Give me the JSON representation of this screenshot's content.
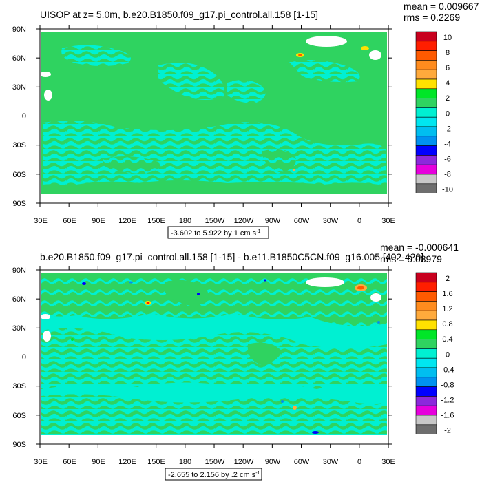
{
  "colors": {
    "background": "#ffffff",
    "ocean_main": "#2fd360",
    "ocean_alt": "#00f0d2",
    "land": "#ffffff"
  },
  "panels": [
    {
      "title": "UISOP at z=   5.0m, b.e20.B1850.f09_g17.pi_control.all.158 [1-15]",
      "stats": {
        "mean": "mean = 0.009667",
        "rms": "rms = 0.2269"
      },
      "range_label": "-3.602 to 5.922 by 1 cm s",
      "range_exp": "-1",
      "colorbar": {
        "labels": [
          "10",
          "8",
          "6",
          "4",
          "2",
          "0",
          "-2",
          "-4",
          "-6",
          "-8",
          "-10"
        ],
        "colors": [
          "#c8001e",
          "#ff1e00",
          "#ff5a00",
          "#ff8c1e",
          "#ffaa3c",
          "#ffe100",
          "#00e628",
          "#2fd360",
          "#00f0d2",
          "#00e6f0",
          "#00bef0",
          "#0091f0",
          "#0000ff",
          "#8c28dc",
          "#e600dc",
          "#c8c8c8",
          "#6e6e6e"
        ]
      }
    },
    {
      "title": "b.e20.B1850.f09_g17.pi_control.all.158 [1-15] - b.e11.B1850C5CN.f09_g16.005 [402-420]",
      "stats": {
        "mean": "mean = -0.000641",
        "rms": "rms = 0.08979"
      },
      "range_label": "-2.655 to 2.156 by .2 cm s",
      "range_exp": "-1",
      "colorbar": {
        "labels": [
          "2",
          "1.6",
          "1.2",
          "0.8",
          "0.4",
          "0",
          "-0.4",
          "-0.8",
          "-1.2",
          "-1.6",
          "-2"
        ],
        "colors": [
          "#c8001e",
          "#ff1e00",
          "#ff5a00",
          "#ff8c1e",
          "#ffaa3c",
          "#ffe100",
          "#00e628",
          "#2fd360",
          "#00f0d2",
          "#00e6f0",
          "#00bef0",
          "#0091f0",
          "#0000ff",
          "#8c28dc",
          "#e600dc",
          "#c8c8c8",
          "#6e6e6e"
        ]
      }
    }
  ],
  "axes": {
    "lat_labels": [
      "90N",
      "60N",
      "30N",
      "0",
      "30S",
      "60S",
      "90S"
    ],
    "lon_labels": [
      "30E",
      "60E",
      "90E",
      "120E",
      "150E",
      "180",
      "150W",
      "120W",
      "90W",
      "60W",
      "30W",
      "0",
      "30E"
    ]
  }
}
